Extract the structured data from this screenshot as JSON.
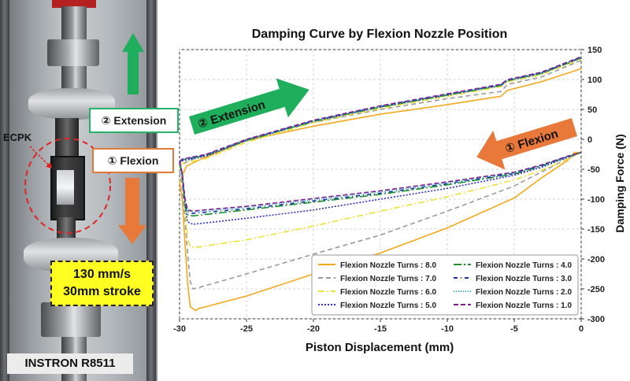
{
  "photo": {
    "machine_label": "INSTRON R8511",
    "specimen_label": "ECPK",
    "extension_label": "② Extension",
    "flexion_label": "① Flexion",
    "speed_line1": "130 mm/s",
    "speed_line2": "30mm stroke"
  },
  "colors": {
    "extension_arrow": "#1fae5b",
    "flexion_arrow": "#e8793a",
    "speed_box": "#ffff22"
  },
  "chart_data": {
    "type": "line",
    "title": "Damping Curve by Flexion Nozzle Position",
    "xlabel": "Piston Displacement (mm)",
    "ylabel": "Damping Force (N)",
    "xlim": [
      -30,
      0
    ],
    "ylim": [
      -300,
      150
    ],
    "xticks": [
      -30,
      -25,
      -20,
      -15,
      -10,
      -5,
      0
    ],
    "yticks": [
      150,
      100,
      50,
      0,
      -50,
      -100,
      -150,
      -200,
      -250,
      -300
    ],
    "annotations": [
      {
        "text": "② Extension",
        "color": "#1fae5b"
      },
      {
        "text": "① Flexion",
        "color": "#e8793a"
      }
    ],
    "series": [
      {
        "name": "Flexion Nozzle Turns : 8.0",
        "color": "#f4a81c",
        "dash": "solid",
        "upper": [
          [
            -30,
            -70
          ],
          [
            -29.8,
            -62
          ],
          [
            -29.5,
            -45
          ],
          [
            -28.5,
            -34
          ],
          [
            -25,
            -2
          ],
          [
            -20,
            22
          ],
          [
            -15,
            42
          ],
          [
            -10,
            58
          ],
          [
            -6,
            72
          ],
          [
            -5.5,
            82
          ],
          [
            -3,
            96
          ],
          [
            0,
            118
          ]
        ],
        "lower": [
          [
            -30,
            -70
          ],
          [
            -29.8,
            -100
          ],
          [
            -29.6,
            -170
          ],
          [
            -29.4,
            -240
          ],
          [
            -29.2,
            -280
          ],
          [
            -28.8,
            -286
          ],
          [
            -28.6,
            -283
          ],
          [
            -25,
            -262
          ],
          [
            -20,
            -225
          ],
          [
            -15,
            -190
          ],
          [
            -10,
            -148
          ],
          [
            -5,
            -98
          ],
          [
            -3,
            -65
          ],
          [
            -1,
            -35
          ],
          [
            -0.5,
            -22
          ],
          [
            0,
            -22
          ]
        ]
      },
      {
        "name": "Flexion Nozzle Turns : 7.0",
        "color": "#9a9a9a",
        "dash": "6,4",
        "upper": [
          [
            -30,
            -52
          ],
          [
            -29.8,
            -42
          ],
          [
            -29.2,
            -35
          ],
          [
            -28,
            -25
          ],
          [
            -25,
            0
          ],
          [
            -20,
            28
          ],
          [
            -15,
            50
          ],
          [
            -10,
            68
          ],
          [
            -6,
            80
          ],
          [
            -5.5,
            92
          ],
          [
            -3,
            104
          ],
          [
            0,
            132
          ]
        ],
        "lower": [
          [
            -30,
            -52
          ],
          [
            -29.8,
            -80
          ],
          [
            -29.6,
            -130
          ],
          [
            -29.4,
            -190
          ],
          [
            -29.2,
            -238
          ],
          [
            -29,
            -250
          ],
          [
            -28.6,
            -248
          ],
          [
            -25,
            -225
          ],
          [
            -20,
            -192
          ],
          [
            -15,
            -160
          ],
          [
            -10,
            -120
          ],
          [
            -5,
            -78
          ],
          [
            -3,
            -55
          ],
          [
            -1,
            -32
          ],
          [
            0,
            -22
          ]
        ]
      },
      {
        "name": "Flexion Nozzle Turns : 6.0",
        "color": "#f0e13a",
        "dash": "8,3,2,3",
        "upper": [
          [
            -30,
            -44
          ],
          [
            -29.8,
            -40
          ],
          [
            -28,
            -32
          ],
          [
            -25,
            -5
          ],
          [
            -20,
            28
          ],
          [
            -15,
            52
          ],
          [
            -10,
            72
          ],
          [
            -6,
            88
          ],
          [
            -5.5,
            96
          ],
          [
            -3,
            108
          ],
          [
            0,
            134
          ]
        ],
        "lower": [
          [
            -30,
            -44
          ],
          [
            -29.8,
            -60
          ],
          [
            -29.6,
            -110
          ],
          [
            -29.4,
            -165
          ],
          [
            -29.2,
            -180
          ],
          [
            -28.6,
            -180
          ],
          [
            -25,
            -168
          ],
          [
            -20,
            -145
          ],
          [
            -15,
            -120
          ],
          [
            -10,
            -96
          ],
          [
            -5,
            -68
          ],
          [
            -3,
            -52
          ],
          [
            -1,
            -33
          ],
          [
            0,
            -22
          ]
        ]
      },
      {
        "name": "Flexion Nozzle Turns : 5.0",
        "color": "#2d2dcf",
        "dash": "2,2",
        "upper": [
          [
            -30,
            -40
          ],
          [
            -29.8,
            -36
          ],
          [
            -28,
            -28
          ],
          [
            -25,
            -2
          ],
          [
            -20,
            30
          ],
          [
            -15,
            54
          ],
          [
            -10,
            74
          ],
          [
            -6,
            90
          ],
          [
            -5.5,
            98
          ],
          [
            -3,
            110
          ],
          [
            0,
            136
          ]
        ],
        "lower": [
          [
            -30,
            -40
          ],
          [
            -29.8,
            -60
          ],
          [
            -29.6,
            -110
          ],
          [
            -29.4,
            -138
          ],
          [
            -29,
            -142
          ],
          [
            -28.6,
            -141
          ],
          [
            -25,
            -132
          ],
          [
            -20,
            -118
          ],
          [
            -15,
            -100
          ],
          [
            -10,
            -82
          ],
          [
            -5,
            -60
          ],
          [
            -3,
            -47
          ],
          [
            -1,
            -30
          ],
          [
            0,
            -22
          ]
        ]
      },
      {
        "name": "Flexion Nozzle Turns : 4.0",
        "color": "#1e8f2e",
        "dash": "10,3,2,3",
        "upper": [
          [
            -30,
            -38
          ],
          [
            -29.8,
            -34
          ],
          [
            -28,
            -27
          ],
          [
            -25,
            -2
          ],
          [
            -20,
            30
          ],
          [
            -15,
            54
          ],
          [
            -10,
            74
          ],
          [
            -6,
            90
          ],
          [
            -5.5,
            98
          ],
          [
            -3,
            110
          ],
          [
            0,
            136
          ]
        ],
        "lower": [
          [
            -30,
            -38
          ],
          [
            -29.8,
            -60
          ],
          [
            -29.6,
            -110
          ],
          [
            -29.4,
            -126
          ],
          [
            -29,
            -128
          ],
          [
            -28.6,
            -127
          ],
          [
            -25,
            -118
          ],
          [
            -20,
            -105
          ],
          [
            -15,
            -92
          ],
          [
            -10,
            -76
          ],
          [
            -5,
            -58
          ],
          [
            -3,
            -45
          ],
          [
            -1,
            -29
          ],
          [
            0,
            -22
          ]
        ]
      },
      {
        "name": "Flexion Nozzle Turns : 3.0",
        "color": "#1c2fa5",
        "dash": "5,4,1,4",
        "upper": [
          [
            -30,
            -38
          ],
          [
            -29.8,
            -34
          ],
          [
            -28,
            -26
          ],
          [
            -25,
            -1
          ],
          [
            -20,
            31
          ],
          [
            -15,
            55
          ],
          [
            -10,
            75
          ],
          [
            -6,
            91
          ],
          [
            -5.5,
            99
          ],
          [
            -3,
            111
          ],
          [
            0,
            137
          ]
        ],
        "lower": [
          [
            -30,
            -38
          ],
          [
            -29.8,
            -60
          ],
          [
            -29.6,
            -105
          ],
          [
            -29.4,
            -122
          ],
          [
            -29,
            -124
          ],
          [
            -28.6,
            -123
          ],
          [
            -25,
            -116
          ],
          [
            -20,
            -103
          ],
          [
            -15,
            -90
          ],
          [
            -10,
            -74
          ],
          [
            -5,
            -57
          ],
          [
            -3,
            -44
          ],
          [
            -1,
            -29
          ],
          [
            0,
            -22
          ]
        ]
      },
      {
        "name": "Flexion Nozzle Turns : 2.0",
        "color": "#22b6c8",
        "dash": "1,2",
        "upper": [
          [
            -30,
            -38
          ],
          [
            -29.8,
            -34
          ],
          [
            -28,
            -26
          ],
          [
            -25,
            -1
          ],
          [
            -20,
            31
          ],
          [
            -15,
            55
          ],
          [
            -10,
            75
          ],
          [
            -6,
            91
          ],
          [
            -5.5,
            99
          ],
          [
            -3,
            111
          ],
          [
            0,
            137
          ]
        ],
        "lower": [
          [
            -30,
            -38
          ],
          [
            -29.8,
            -58
          ],
          [
            -29.6,
            -100
          ],
          [
            -29.4,
            -120
          ],
          [
            -29,
            -122
          ],
          [
            -28.6,
            -121
          ],
          [
            -25,
            -114
          ],
          [
            -20,
            -101
          ],
          [
            -15,
            -88
          ],
          [
            -10,
            -73
          ],
          [
            -5,
            -56
          ],
          [
            -3,
            -44
          ],
          [
            -1,
            -29
          ],
          [
            0,
            -22
          ]
        ]
      },
      {
        "name": "Flexion Nozzle Turns : 1.0",
        "color": "#7d1f8f",
        "dash": "6,3",
        "upper": [
          [
            -30,
            -37
          ],
          [
            -29.8,
            -33
          ],
          [
            -28,
            -25
          ],
          [
            -25,
            0
          ],
          [
            -20,
            32
          ],
          [
            -15,
            56
          ],
          [
            -10,
            76
          ],
          [
            -6,
            92
          ],
          [
            -5.5,
            100
          ],
          [
            -3,
            112
          ],
          [
            0,
            138
          ]
        ],
        "lower": [
          [
            -30,
            -37
          ],
          [
            -29.8,
            -56
          ],
          [
            -29.6,
            -98
          ],
          [
            -29.4,
            -118
          ],
          [
            -29,
            -120
          ],
          [
            -28.6,
            -119
          ],
          [
            -25,
            -112
          ],
          [
            -20,
            -99
          ],
          [
            -15,
            -86
          ],
          [
            -10,
            -71
          ],
          [
            -5,
            -55
          ],
          [
            -3,
            -43
          ],
          [
            -1,
            -28
          ],
          [
            0,
            -22
          ]
        ]
      }
    ]
  }
}
